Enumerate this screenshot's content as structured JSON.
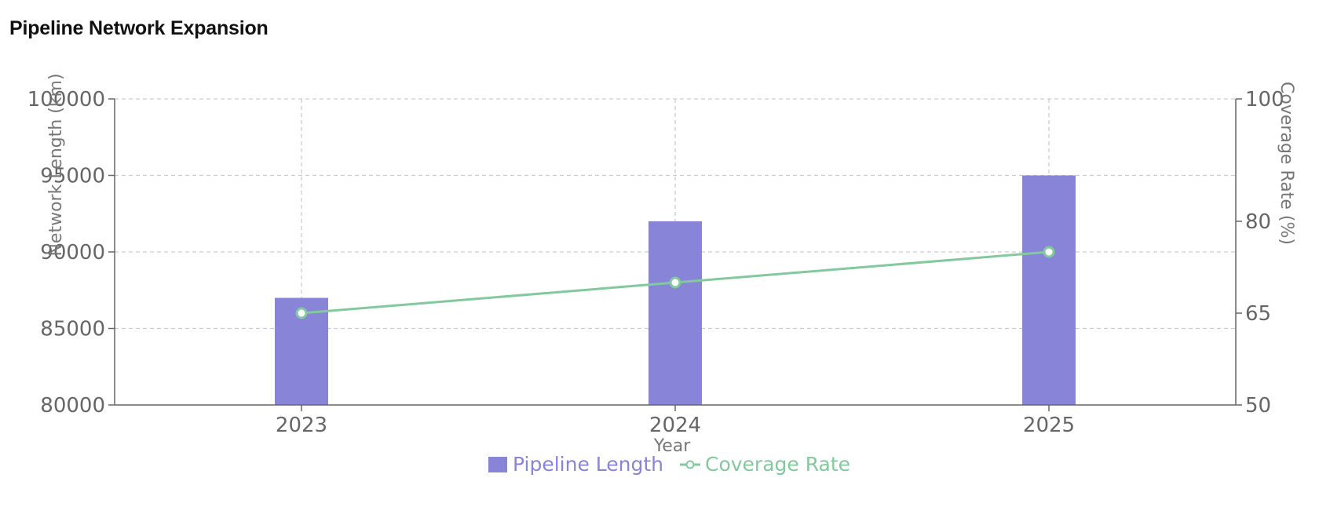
{
  "chart_data": {
    "type": "bar",
    "title": "Pipeline Network Expansion",
    "categories": [
      "2023",
      "2024",
      "2025"
    ],
    "xlabel": "Year",
    "series": [
      {
        "name": "Pipeline Length",
        "type": "bar",
        "axis": "left",
        "values": [
          87000,
          92000,
          95000
        ],
        "color": "#8884d8"
      },
      {
        "name": "Coverage Rate",
        "type": "line",
        "axis": "right",
        "values": [
          65,
          70,
          75
        ],
        "color": "#82ca9d"
      }
    ],
    "y_left": {
      "label": "Network Length (km)",
      "ylim": [
        80000,
        100000
      ],
      "ticks": [
        80000,
        85000,
        90000,
        95000,
        100000
      ]
    },
    "y_right": {
      "label": "Coverage Rate (%)",
      "ylim": [
        50,
        100
      ],
      "ticks": [
        50,
        65,
        80,
        100
      ]
    },
    "grid": true,
    "legend_position": "bottom-center"
  }
}
